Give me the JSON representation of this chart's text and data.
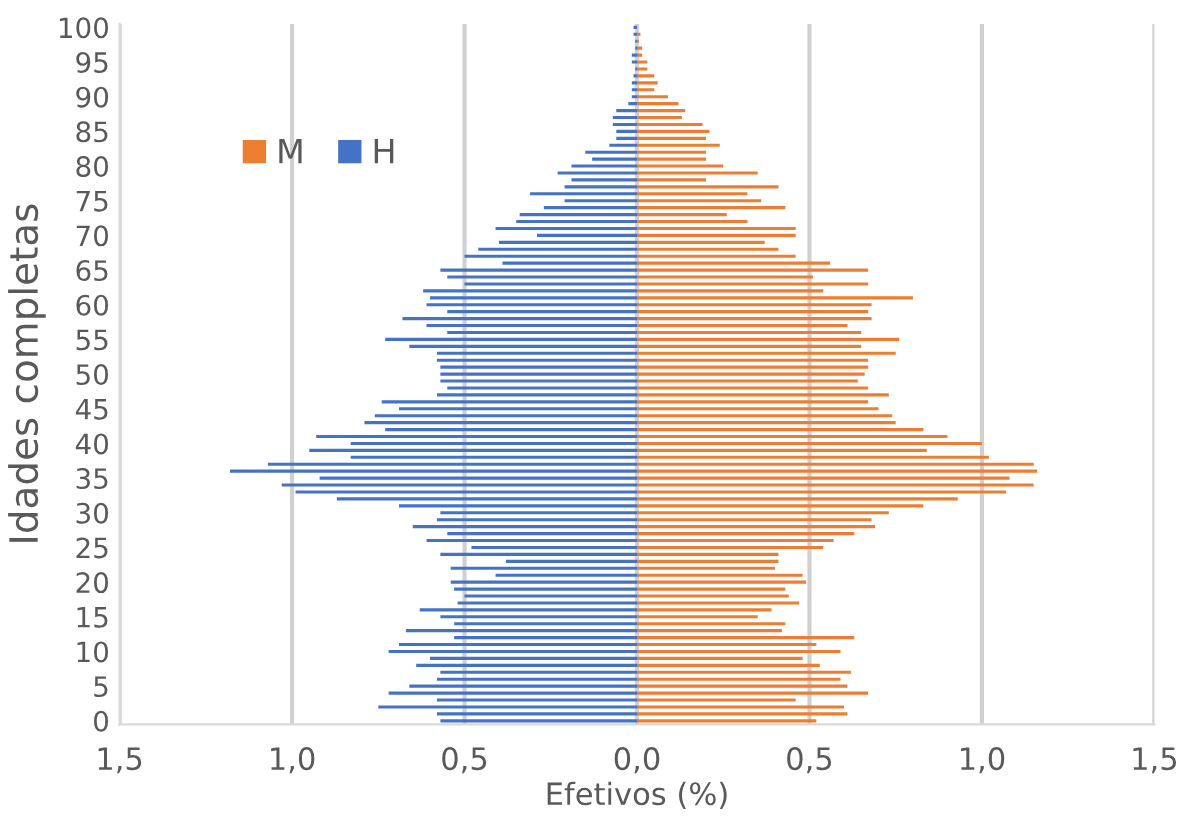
{
  "chart_data": {
    "type": "bar",
    "orientation": "horizontal",
    "xlabel": "Efetivos (%)",
    "ylabel": "Idades completas",
    "categories": [
      "100",
      null,
      null,
      null,
      null,
      "95",
      null,
      null,
      null,
      null,
      "90",
      null,
      null,
      null,
      null,
      "85",
      null,
      null,
      null,
      null,
      "80",
      null,
      null,
      null,
      null,
      "75",
      null,
      null,
      null,
      null,
      "70",
      null,
      null,
      null,
      null,
      "65",
      null,
      null,
      null,
      null,
      "60",
      null,
      null,
      null,
      null,
      "55",
      null,
      null,
      null,
      null,
      "50",
      null,
      null,
      null,
      null,
      "45",
      null,
      null,
      null,
      null,
      "40",
      null,
      null,
      null,
      null,
      "35",
      null,
      null,
      null,
      null,
      "30",
      null,
      null,
      null,
      null,
      "25",
      null,
      null,
      null,
      null,
      "20",
      null,
      null,
      null,
      null,
      "15",
      null,
      null,
      null,
      null,
      "10",
      null,
      null,
      null,
      null,
      "5",
      null,
      null,
      null,
      null,
      "0"
    ],
    "series": [
      {
        "name": "M",
        "color": "#ed7d31",
        "values": [
          0,
          0.01,
          0.005,
          0.015,
          0.015,
          0.03,
          0.03,
          0.05,
          0.06,
          0.05,
          0.09,
          0.12,
          0.14,
          0.13,
          0.19,
          0.21,
          0.2,
          0.24,
          0.2,
          0.2,
          0.25,
          0.35,
          0.2,
          0.41,
          0.32,
          0.36,
          0.43,
          0.26,
          0.32,
          0.46,
          0.46,
          0.37,
          0.41,
          0.46,
          0.56,
          0.67,
          0.51,
          0.67,
          0.54,
          0.8,
          0.68,
          0.67,
          0.68,
          0.61,
          0.65,
          0.76,
          0.65,
          0.75,
          0.67,
          0.67,
          0.66,
          0.64,
          0.67,
          0.73,
          0.67,
          0.7,
          0.74,
          0.75,
          0.83,
          0.9,
          1.0,
          0.84,
          1.02,
          1.15,
          1.16,
          1.08,
          1.15,
          1.07,
          0.93,
          0.83,
          0.73,
          0.68,
          0.69,
          0.63,
          0.57,
          0.54,
          0.41,
          0.41,
          0.4,
          0.48,
          0.49,
          0.43,
          0.44,
          0.47,
          0.39,
          0.35,
          0.43,
          0.42,
          0.63,
          0.52,
          0.59,
          0.48,
          0.53,
          0.62,
          0.59,
          0.61,
          0.67,
          0.46,
          0.6,
          0.61,
          0.52
        ]
      },
      {
        "name": "H",
        "color": "#4472c4",
        "values": [
          -0.01,
          -0.01,
          -0.005,
          -0.005,
          -0.015,
          -0.015,
          -0.005,
          -0.01,
          -0.015,
          -0.015,
          -0.015,
          -0.025,
          -0.06,
          -0.07,
          -0.07,
          -0.06,
          -0.06,
          -0.08,
          -0.15,
          -0.13,
          -0.19,
          -0.23,
          -0.19,
          -0.21,
          -0.31,
          -0.21,
          -0.27,
          -0.34,
          -0.35,
          -0.41,
          -0.29,
          -0.4,
          -0.46,
          -0.5,
          -0.39,
          -0.57,
          -0.55,
          -0.5,
          -0.62,
          -0.6,
          -0.61,
          -0.55,
          -0.68,
          -0.61,
          -0.55,
          -0.73,
          -0.66,
          -0.58,
          -0.58,
          -0.57,
          -0.57,
          -0.57,
          -0.55,
          -0.58,
          -0.74,
          -0.69,
          -0.76,
          -0.79,
          -0.73,
          -0.93,
          -0.83,
          -0.95,
          -0.83,
          -1.07,
          -1.18,
          -0.92,
          -1.03,
          -0.99,
          -0.87,
          -0.69,
          -0.57,
          -0.58,
          -0.65,
          -0.55,
          -0.61,
          -0.48,
          -0.57,
          -0.38,
          -0.54,
          -0.41,
          -0.54,
          -0.53,
          -0.5,
          -0.52,
          -0.63,
          -0.57,
          -0.53,
          -0.67,
          -0.53,
          -0.69,
          -0.72,
          -0.6,
          -0.64,
          -0.57,
          -0.58,
          -0.66,
          -0.72,
          -0.58,
          -0.75,
          -0.58,
          -0.57
        ]
      }
    ],
    "xlim": [
      -1.5,
      1.5
    ],
    "xticks": [
      {
        "value": -1.5,
        "label": "1,5"
      },
      {
        "value": -1.0,
        "label": "1,0"
      },
      {
        "value": -0.5,
        "label": "0,5"
      },
      {
        "value": 0,
        "label": "0,0"
      },
      {
        "value": 0.5,
        "label": "0,5"
      },
      {
        "value": 1.0,
        "label": "1,0"
      },
      {
        "value": 1.5,
        "label": "1,5"
      }
    ],
    "grid": "x",
    "legend": "top left"
  }
}
